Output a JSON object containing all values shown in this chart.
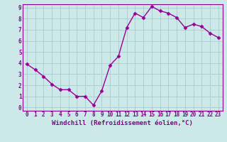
{
  "x": [
    0,
    1,
    2,
    3,
    4,
    5,
    6,
    7,
    8,
    9,
    10,
    11,
    12,
    13,
    14,
    15,
    16,
    17,
    18,
    19,
    20,
    21,
    22,
    23
  ],
  "y": [
    3.9,
    3.4,
    2.8,
    2.1,
    1.6,
    1.6,
    1.0,
    1.0,
    0.2,
    1.5,
    3.8,
    4.6,
    7.2,
    8.5,
    8.1,
    9.1,
    8.7,
    8.5,
    8.1,
    7.2,
    7.5,
    7.3,
    6.7,
    6.3
  ],
  "line_color": "#990099",
  "marker": "D",
  "marker_size": 2.5,
  "linewidth": 1.0,
  "xlabel": "Windchill (Refroidissement éolien,°C)",
  "ylim": [
    0,
    9
  ],
  "xlim": [
    0,
    23
  ],
  "yticks": [
    0,
    1,
    2,
    3,
    4,
    5,
    6,
    7,
    8,
    9
  ],
  "xticks": [
    0,
    1,
    2,
    3,
    4,
    5,
    6,
    7,
    8,
    9,
    10,
    11,
    12,
    13,
    14,
    15,
    16,
    17,
    18,
    19,
    20,
    21,
    22,
    23
  ],
  "bg_color": "#cce8e8",
  "grid_color": "#aacccc",
  "label_color": "#880088",
  "tick_color": "#880088",
  "tick_fontsize": 5.5,
  "xlabel_fontsize": 6.5
}
